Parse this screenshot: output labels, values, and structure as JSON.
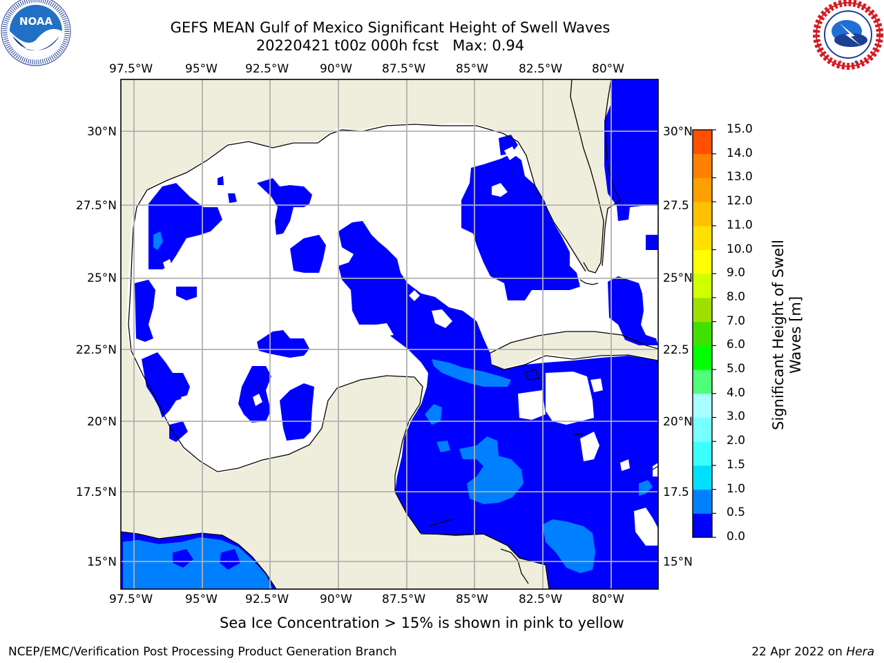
{
  "header": {
    "title_line1": "GEFS MEAN Gulf of Mexico Significant Height of Swell Waves",
    "title_line2": "20220421 t00z 000h fcst   Max: 0.94"
  },
  "logos": {
    "noaa_left": {
      "name": "NOAA",
      "ring_text": "NATIONAL OCEANIC AND ATMOSPHERIC ADMINISTRATION · U.S. DEPARTMENT OF COMMERCE"
    },
    "nws_right": {
      "ring_text": "NATIONAL WEATHER SERVICE"
    }
  },
  "map": {
    "lon_labels": [
      "97.5°W",
      "95°W",
      "92.5°W",
      "90°W",
      "87.5°W",
      "85°W",
      "82.5°W",
      "80°W"
    ],
    "lat_labels_left": [
      "30°N",
      "27.5°N",
      "25°N",
      "22.5°N",
      "20°N",
      "17.5°N",
      "15°N"
    ],
    "lat_labels_right": [
      "30°N",
      "27.5",
      "25°N",
      "22.5",
      "20°N",
      "17.5",
      "15°N"
    ],
    "colors": {
      "land": "#efeedd",
      "grid": "#b0b0b0",
      "swell_0_0_5": "#0000ff",
      "swell_0_5_1_0": "#0080ff"
    }
  },
  "colorbar": {
    "label": "Significant Height of Swell Waves [m]",
    "ticks": [
      "0.0",
      "0.5",
      "1.0",
      "1.5",
      "2.0",
      "3.0",
      "4.0",
      "5.0",
      "6.0",
      "7.0",
      "8.0",
      "9.0",
      "10.0",
      "11.0",
      "12.0",
      "13.0",
      "14.0",
      "15.0"
    ],
    "colors": [
      "#0000ff",
      "#0080ff",
      "#00dfff",
      "#3cffff",
      "#78ffff",
      "#a8ffff",
      "#50ff78",
      "#00ff00",
      "#40e000",
      "#a0e000",
      "#d0ff00",
      "#ffff00",
      "#ffe000",
      "#ffc000",
      "#ffa000",
      "#ff8000",
      "#ff5000",
      "#ff2000",
      "#ff0000"
    ]
  },
  "notes": {
    "sea_ice": "Sea Ice Concentration > 15% is shown in pink to yellow"
  },
  "footer": {
    "left": "NCEP/EMC/Verification Post Processing Product Generation Branch",
    "right_date": "22 Apr 2022 on ",
    "right_host": "Hera"
  }
}
